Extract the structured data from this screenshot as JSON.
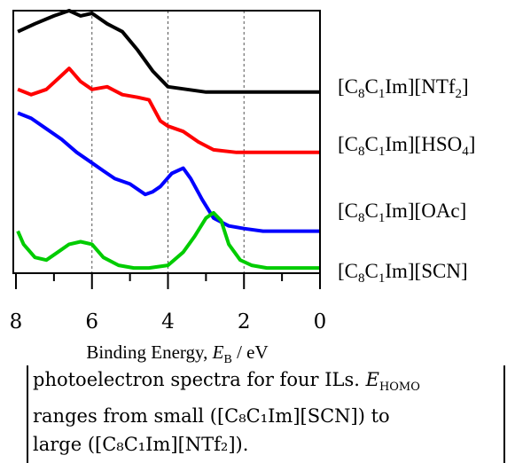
{
  "chart_data": {
    "type": "line",
    "xlabel": "Binding Energy, E_B / eV",
    "xlabel_parts": {
      "prefix": "Binding Energy, ",
      "var": "E",
      "sub": "B",
      "suffix": " / eV"
    },
    "xlim": [
      8,
      0
    ],
    "x_ticks": [
      "8",
      "6",
      "4",
      "2",
      "0"
    ],
    "grid": "vertical dashed at 6, 4, 2",
    "legend_placement": "right, next to each curve",
    "series": [
      {
        "name": "[C8C1Im][NTf2]",
        "label_parts": [
          "[C",
          "8",
          "C",
          "1",
          "Im][NTf",
          "2",
          "]"
        ],
        "color": "#000000",
        "x": [
          7.95,
          7.5,
          7.0,
          6.6,
          6.3,
          6.0,
          5.6,
          5.2,
          4.8,
          4.4,
          4.0,
          3.5,
          3.0,
          2.0,
          1.0,
          0.0
        ],
        "y": [
          0.92,
          0.95,
          0.98,
          1.0,
          0.98,
          0.99,
          0.95,
          0.92,
          0.85,
          0.77,
          0.71,
          0.7,
          0.69,
          0.69,
          0.69,
          0.69
        ]
      },
      {
        "name": "[C8C1Im][HSO4]",
        "label_parts": [
          "[C",
          "8",
          "C",
          "1",
          "Im][HSO",
          "4",
          "]"
        ],
        "color": "#ff0000",
        "x": [
          7.95,
          7.6,
          7.2,
          6.9,
          6.6,
          6.3,
          6.0,
          5.6,
          5.2,
          4.8,
          4.5,
          4.2,
          4.0,
          3.6,
          3.2,
          2.8,
          2.2,
          1.5,
          1.0,
          0.0
        ],
        "y": [
          0.7,
          0.68,
          0.7,
          0.74,
          0.78,
          0.73,
          0.7,
          0.71,
          0.68,
          0.67,
          0.66,
          0.58,
          0.56,
          0.54,
          0.5,
          0.47,
          0.46,
          0.46,
          0.46,
          0.46
        ]
      },
      {
        "name": "[C8C1Im][OAc]",
        "label_parts": [
          "[C",
          "8",
          "C",
          "1",
          "Im][OAc]"
        ],
        "color": "#0000ff",
        "x": [
          7.95,
          7.6,
          7.2,
          6.8,
          6.4,
          6.0,
          5.7,
          5.4,
          5.0,
          4.6,
          4.4,
          4.2,
          3.9,
          3.6,
          3.4,
          3.1,
          2.8,
          2.4,
          2.0,
          1.5,
          1.0,
          0.0
        ],
        "y": [
          0.61,
          0.59,
          0.55,
          0.51,
          0.46,
          0.42,
          0.39,
          0.36,
          0.34,
          0.3,
          0.31,
          0.33,
          0.38,
          0.4,
          0.36,
          0.28,
          0.21,
          0.18,
          0.17,
          0.16,
          0.16,
          0.16
        ]
      },
      {
        "name": "[C8C1Im][SCN]",
        "label_parts": [
          "[C",
          "8",
          "C",
          "1",
          "Im][SCN]"
        ],
        "color": "#00cc00",
        "x": [
          7.95,
          7.8,
          7.5,
          7.2,
          6.9,
          6.6,
          6.3,
          6.0,
          5.7,
          5.3,
          4.9,
          4.5,
          4.0,
          3.6,
          3.3,
          3.0,
          2.8,
          2.6,
          2.4,
          2.1,
          1.8,
          1.4,
          1.0,
          0.0
        ],
        "y": [
          0.16,
          0.11,
          0.06,
          0.05,
          0.08,
          0.11,
          0.12,
          0.11,
          0.06,
          0.03,
          0.02,
          0.02,
          0.03,
          0.08,
          0.14,
          0.21,
          0.23,
          0.2,
          0.11,
          0.05,
          0.03,
          0.02,
          0.02,
          0.02
        ]
      }
    ]
  },
  "caption": {
    "line1_prefix": "photoelectron spectra for four ILs. ",
    "line1_var": "E",
    "line1_sub": "HOMO",
    "line2": "ranges from small ([C₈C₁Im][SCN]) to",
    "line3": "large ([C₈C₁Im][NTf₂])."
  }
}
